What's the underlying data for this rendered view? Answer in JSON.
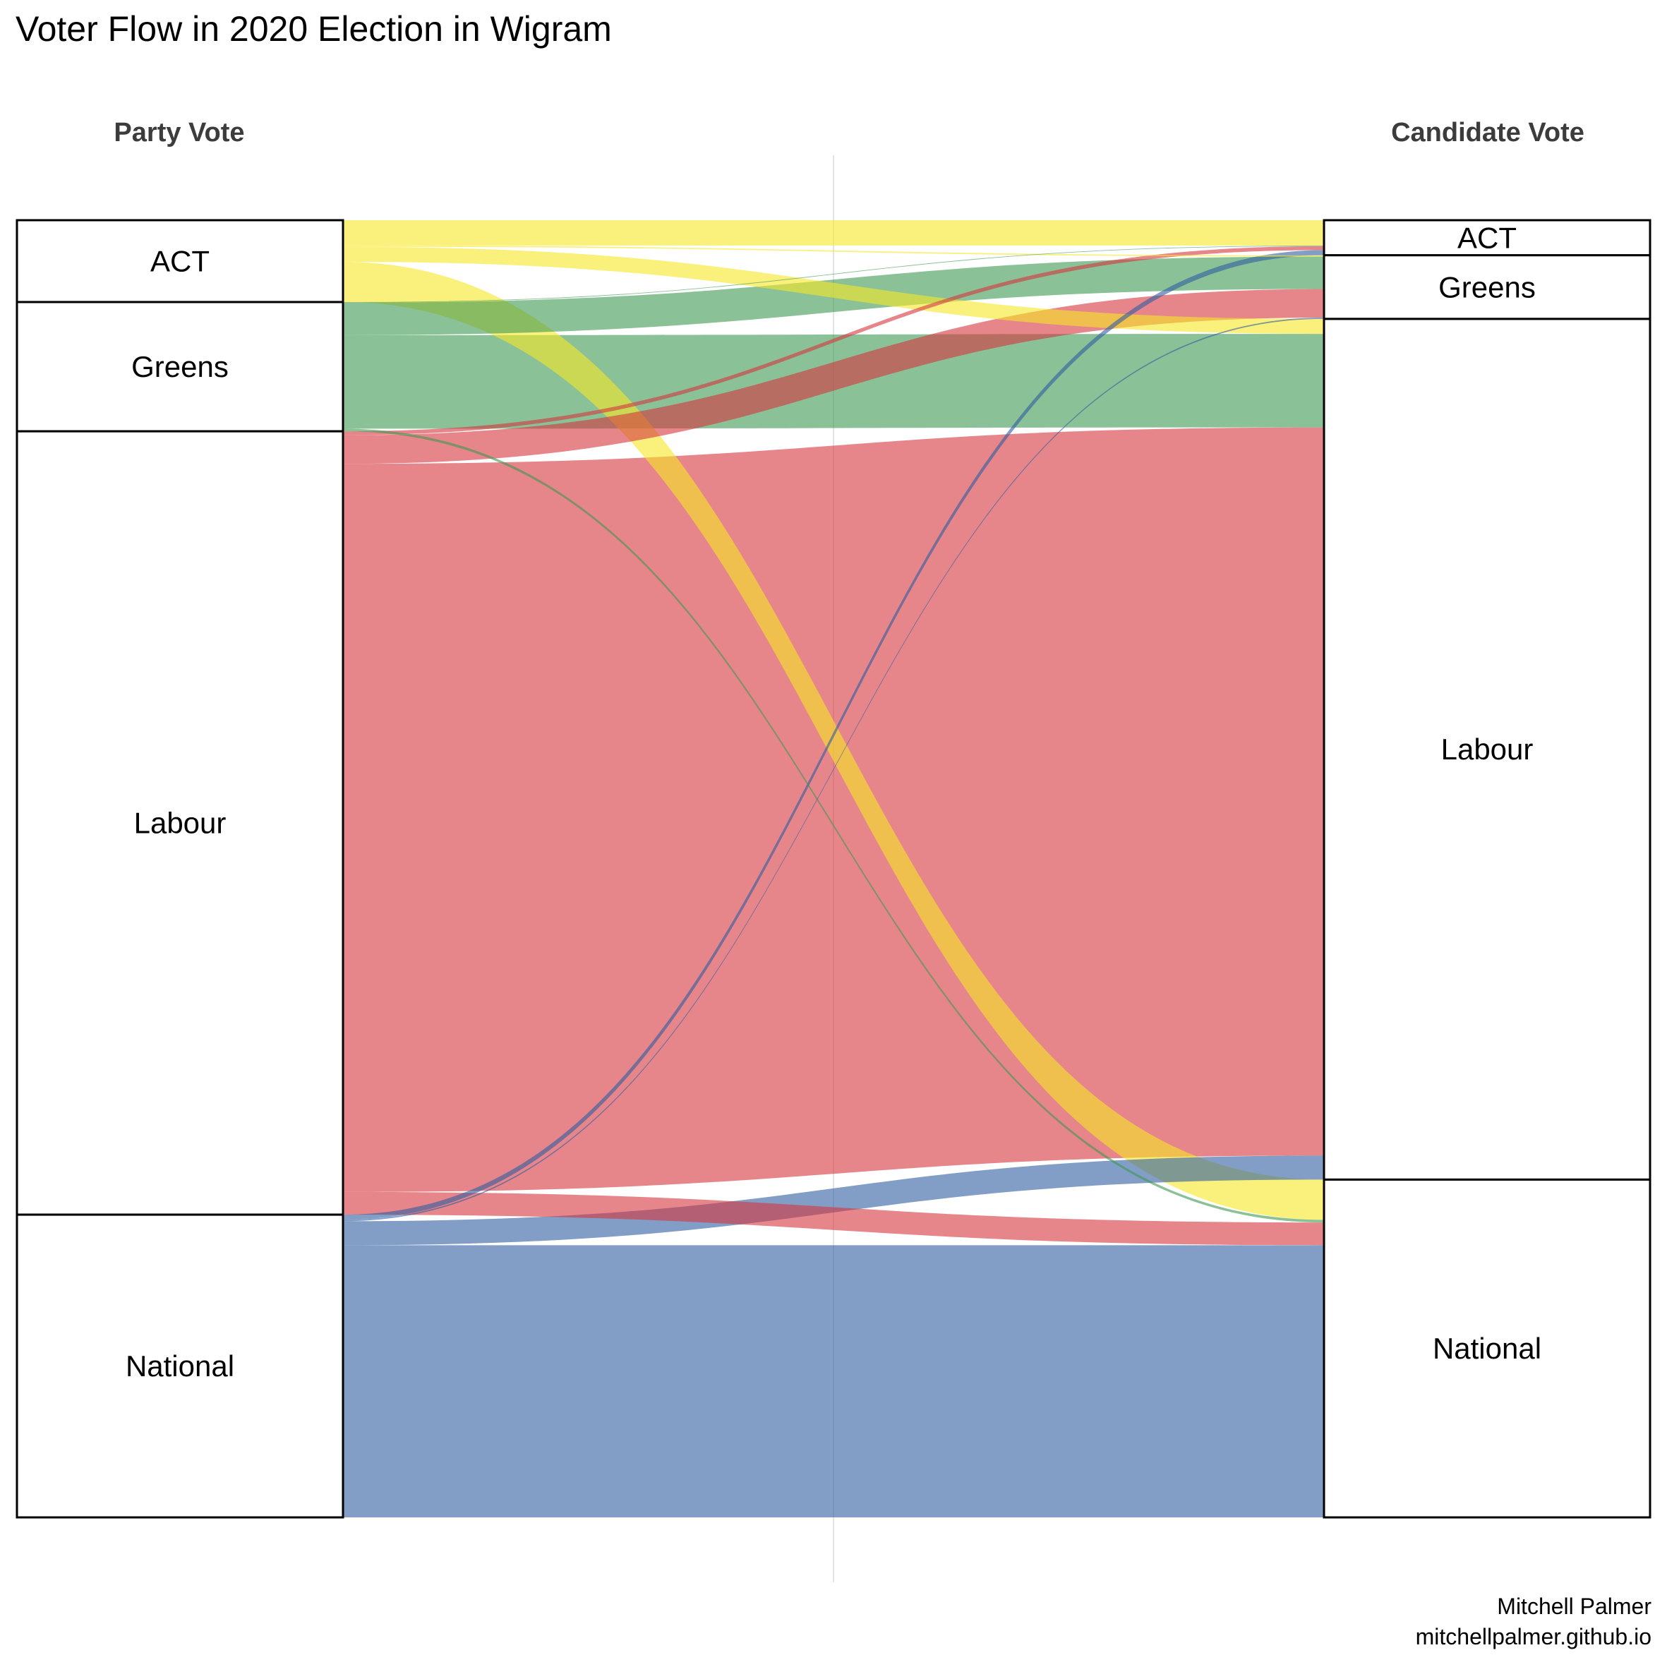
{
  "chart_data": {
    "type": "alluvial",
    "title": "Voter Flow in 2020 Election in Wigram",
    "axis_labels": [
      "Party Vote",
      "Candidate Vote"
    ],
    "caption": [
      "Mitchell Palmer",
      "mitchellpalmer.github.io"
    ],
    "colors": {
      "ACT": "#f6e726",
      "Greens": "#3d9751",
      "Labour": "#d5363e",
      "National": "#2f5da0"
    },
    "flow_opacity": 0.6,
    "grid": "single faint vertical line at centre",
    "left_stratum_order": [
      "ACT",
      "Greens",
      "Labour",
      "National"
    ],
    "right_stratum_order": [
      "ACT",
      "Greens",
      "Labour",
      "National"
    ],
    "flows": [
      {
        "from": "ACT",
        "to": "ACT",
        "share": 1.95
      },
      {
        "from": "ACT",
        "to": "Greens",
        "share": 0.1
      },
      {
        "from": "ACT",
        "to": "Labour",
        "share": 1.15
      },
      {
        "from": "ACT",
        "to": "National",
        "share": 3.1
      },
      {
        "from": "Greens",
        "to": "ACT",
        "share": 0.05
      },
      {
        "from": "Greens",
        "to": "Greens",
        "share": 2.5
      },
      {
        "from": "Greens",
        "to": "Labour",
        "share": 7.2
      },
      {
        "from": "Greens",
        "to": "National",
        "share": 0.2
      },
      {
        "from": "Labour",
        "to": "ACT",
        "share": 0.3
      },
      {
        "from": "Labour",
        "to": "Greens",
        "share": 2.2
      },
      {
        "from": "Labour",
        "to": "Labour",
        "share": 56.05
      },
      {
        "from": "Labour",
        "to": "National",
        "share": 1.75
      },
      {
        "from": "National",
        "to": "ACT",
        "share": 0.4
      },
      {
        "from": "National",
        "to": "Greens",
        "share": 0.1
      },
      {
        "from": "National",
        "to": "Labour",
        "share": 1.85
      },
      {
        "from": "National",
        "to": "National",
        "share": 20.95
      }
    ]
  }
}
